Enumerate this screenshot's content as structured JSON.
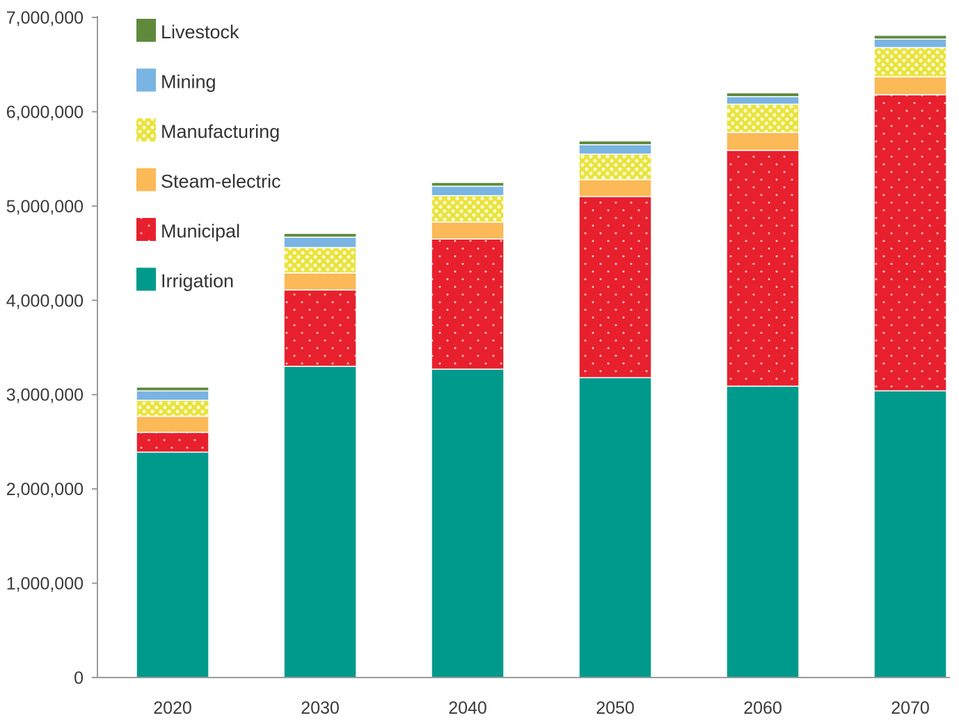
{
  "chart_data": {
    "type": "bar",
    "stacked": true,
    "title": "",
    "xlabel": "",
    "ylabel": "",
    "ylim": [
      0,
      7000000
    ],
    "yticks": [
      0,
      1000000,
      2000000,
      3000000,
      4000000,
      5000000,
      6000000,
      7000000
    ],
    "ytick_labels": [
      "0",
      "1,000,000",
      "2,000,000",
      "3,000,000",
      "4,000,000",
      "5,000,000",
      "6,000,000",
      "7,000,000"
    ],
    "categories": [
      "2020",
      "2030",
      "2040",
      "2050",
      "2060",
      "2070"
    ],
    "grid": false,
    "legend_position": "top-left",
    "series": [
      {
        "name": "Irrigation",
        "color": "#009a8c",
        "pattern": "none",
        "values": [
          2390000,
          3300000,
          3270000,
          3180000,
          3090000,
          3040000
        ]
      },
      {
        "name": "Municipal",
        "color": "#e8202e",
        "pattern": "dots",
        "values": [
          210000,
          810000,
          1380000,
          1920000,
          2500000,
          3140000
        ]
      },
      {
        "name": "Steam-electric",
        "color": "#fbb957",
        "pattern": "none",
        "values": [
          170000,
          180000,
          180000,
          180000,
          190000,
          190000
        ]
      },
      {
        "name": "Manufacturing",
        "color": "#e9e33c",
        "pattern": "dots",
        "values": [
          170000,
          270000,
          280000,
          270000,
          300000,
          310000
        ]
      },
      {
        "name": "Mining",
        "color": "#7ab4e2",
        "pattern": "none",
        "values": [
          100000,
          110000,
          100000,
          100000,
          80000,
          90000
        ]
      },
      {
        "name": "Livestock",
        "color": "#5f8a3b",
        "pattern": "none",
        "values": [
          40000,
          40000,
          40000,
          40000,
          40000,
          40000
        ]
      }
    ]
  }
}
